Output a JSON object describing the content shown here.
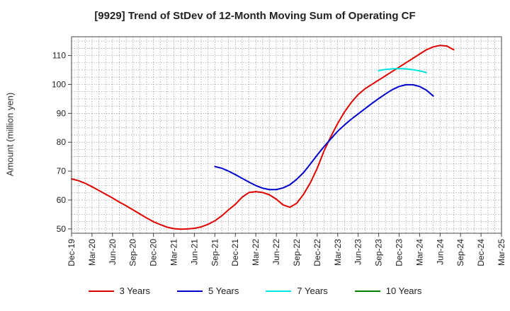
{
  "chart_data": {
    "type": "line",
    "title": "[9929]  Trend of StDev of 12-Month Moving Sum of Operating CF",
    "xlabel": "",
    "ylabel": "Amount (million yen)",
    "ylim": [
      48.5,
      116.5
    ],
    "yticks": [
      50,
      60,
      70,
      80,
      90,
      100,
      110
    ],
    "x_start": "Dec-19",
    "x_end": "Mar-25",
    "xtick_labels": [
      "Dec-19",
      "Mar-20",
      "Jun-20",
      "Sep-20",
      "Dec-20",
      "Mar-21",
      "Jun-21",
      "Sep-21",
      "Dec-21",
      "Mar-22",
      "Jun-22",
      "Sep-22",
      "Dec-22",
      "Mar-23",
      "Jun-23",
      "Sep-23",
      "Dec-23",
      "Mar-24",
      "Jun-24",
      "Sep-24",
      "Dec-24",
      "Mar-25"
    ],
    "grid": true,
    "legend_position": "bottom",
    "series": [
      {
        "name": "3 Years",
        "color": "#e00000",
        "start_index": 0,
        "values": [
          67.3,
          66.7,
          65.8,
          64.6,
          63.3,
          62.0,
          60.7,
          59.3,
          58.0,
          56.6,
          55.2,
          53.8,
          52.5,
          51.5,
          50.6,
          50.1,
          49.9,
          50.0,
          50.2,
          50.7,
          51.6,
          52.8,
          54.5,
          56.6,
          58.5,
          61.0,
          62.6,
          62.9,
          62.6,
          61.8,
          60.3,
          58.3,
          57.5,
          58.9,
          62.0,
          66.0,
          71.0,
          77.0,
          82.0,
          86.5,
          90.5,
          93.8,
          96.5,
          98.5,
          100.0,
          101.5,
          103.0,
          104.5,
          106.0,
          107.5,
          109.0,
          110.5,
          112.0,
          113.0,
          113.5,
          113.3,
          112.0
        ]
      },
      {
        "name": "5 Years",
        "color": "#0000cc",
        "start_index": 21,
        "values": [
          71.6,
          71.0,
          70.0,
          68.8,
          67.5,
          66.2,
          65.0,
          64.1,
          63.6,
          63.6,
          64.2,
          65.3,
          67.2,
          69.5,
          72.5,
          75.6,
          78.5,
          81.2,
          83.8,
          86.0,
          88.0,
          89.8,
          91.6,
          93.4,
          95.1,
          96.7,
          98.2,
          99.3,
          99.9,
          99.9,
          99.3,
          98.0,
          96.0
        ]
      },
      {
        "name": "7 Years",
        "color": "#00e5e5",
        "start_index": 45,
        "values": [
          104.8,
          105.2,
          105.4,
          105.5,
          105.4,
          105.1,
          104.7,
          104.1
        ]
      },
      {
        "name": "10 Years",
        "color": "#008000",
        "start_index": 0,
        "values": []
      }
    ]
  }
}
